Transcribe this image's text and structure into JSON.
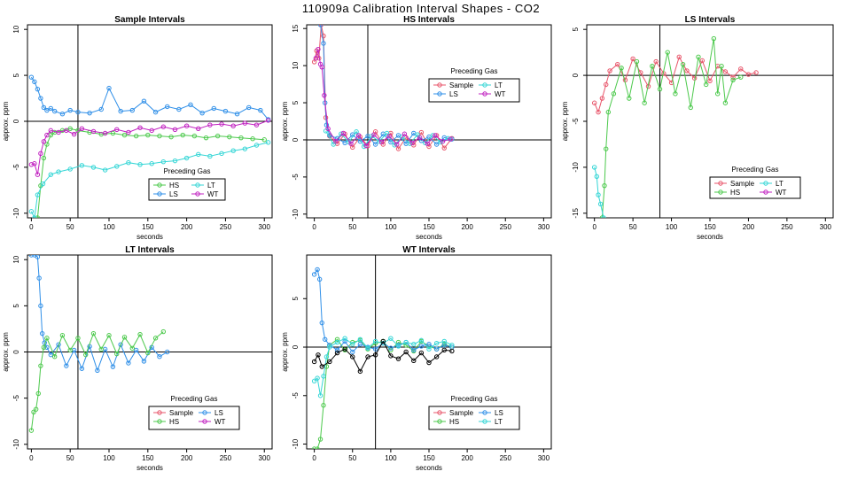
{
  "figure": {
    "title": "110909a   Calibration Interval Shapes - CO2"
  },
  "colors": {
    "Sample": "#e8566b",
    "HS": "#4cc94c",
    "LS": "#2f8fe8",
    "LT": "#35d6d6",
    "WT": "#c020c0",
    "black": "#000000"
  },
  "chart_data": [
    {
      "type": "scatter",
      "title": "Sample Intervals",
      "xlabel": "seconds",
      "ylabel": "approx. ppm",
      "xlim": [
        -5,
        310
      ],
      "ylim": [
        -10.5,
        10.5
      ],
      "xticks": [
        0,
        50,
        100,
        150,
        200,
        250,
        300
      ],
      "yticks": [
        -10,
        -5,
        0,
        5,
        10
      ],
      "vline": 60,
      "hline": 0,
      "legend": {
        "title": "Preceding Gas",
        "position": "bottom-center",
        "entries": [
          "HS",
          "LT",
          "LS",
          "WT"
        ]
      },
      "series": [
        {
          "name": "HS",
          "x": [
            4,
            8,
            12,
            16,
            20,
            25,
            30,
            40,
            50,
            60,
            75,
            90,
            105,
            120,
            135,
            150,
            165,
            180,
            195,
            210,
            225,
            240,
            255,
            270,
            285,
            300
          ],
          "y": [
            -11,
            -10.5,
            -7,
            -4,
            -2.5,
            -1.5,
            -1.2,
            -1,
            -0.8,
            -1,
            -1.2,
            -1.4,
            -1.3,
            -1.5,
            -1.6,
            -1.5,
            -1.6,
            -1.7,
            -1.5,
            -1.6,
            -1.8,
            -1.6,
            -1.7,
            -1.8,
            -1.9,
            -2
          ]
        },
        {
          "name": "LS",
          "x": [
            0,
            4,
            8,
            12,
            16,
            20,
            25,
            30,
            40,
            50,
            60,
            75,
            90,
            100,
            115,
            130,
            145,
            160,
            175,
            190,
            205,
            220,
            235,
            250,
            265,
            280,
            295,
            305
          ],
          "y": [
            4.8,
            4.3,
            3.5,
            2.5,
            1.5,
            1.2,
            1.4,
            1.1,
            0.8,
            1.2,
            1.0,
            0.9,
            1.3,
            3.6,
            1.1,
            1.2,
            2.2,
            1.0,
            1.6,
            1.3,
            1.8,
            0.9,
            1.4,
            1.1,
            0.8,
            1.5,
            1.2,
            0.2
          ]
        },
        {
          "name": "LT",
          "x": [
            0,
            4,
            8,
            15,
            25,
            35,
            50,
            65,
            80,
            95,
            110,
            125,
            140,
            155,
            170,
            185,
            200,
            215,
            230,
            245,
            260,
            275,
            290,
            305
          ],
          "y": [
            -9.8,
            -10.5,
            -8,
            -6.8,
            -5.8,
            -5.5,
            -5.2,
            -4.8,
            -5.0,
            -5.3,
            -4.9,
            -4.5,
            -4.7,
            -4.6,
            -4.4,
            -4.3,
            -4.0,
            -3.6,
            -3.8,
            -3.5,
            -3.2,
            -3.0,
            -2.6,
            -2.3
          ]
        },
        {
          "name": "WT",
          "x": [
            0,
            4,
            8,
            12,
            16,
            20,
            25,
            35,
            45,
            55,
            65,
            80,
            95,
            110,
            125,
            140,
            155,
            170,
            185,
            200,
            215,
            230,
            245,
            260,
            275,
            290,
            305
          ],
          "y": [
            -4.7,
            -4.6,
            -5.8,
            -3.5,
            -2.2,
            -1.5,
            -1.0,
            -1.2,
            -1.0,
            -1.4,
            -0.8,
            -1.1,
            -1.3,
            -0.9,
            -1.2,
            -0.7,
            -1.0,
            -0.6,
            -0.9,
            -0.5,
            -0.8,
            -0.4,
            -0.3,
            -0.5,
            -0.2,
            -0.4,
            0.1
          ]
        }
      ]
    },
    {
      "type": "scatter",
      "title": "HS Intervals",
      "xlabel": "seconds",
      "ylabel": "approx. ppm",
      "xlim": [
        -10,
        310
      ],
      "ylim": [
        -10.5,
        15.5
      ],
      "xticks": [
        0,
        50,
        100,
        150,
        200,
        250,
        300
      ],
      "yticks": [
        -10,
        -5,
        0,
        5,
        10,
        15
      ],
      "vline": 70,
      "hline": 0,
      "legend": {
        "title": "Preceding Gas",
        "position": "top-right",
        "entries": [
          "Sample",
          "LT",
          "LS",
          "WT"
        ]
      },
      "series": [
        {
          "name": "Sample",
          "x": [
            0,
            3,
            6,
            9,
            12,
            15,
            20,
            30,
            40,
            50,
            60,
            70,
            80,
            90,
            100,
            110,
            120,
            130,
            140,
            150,
            160,
            170,
            180
          ],
          "y": [
            10.5,
            12,
            11,
            15.5,
            14,
            3,
            0.5,
            -0.5,
            0.8,
            -1,
            0.4,
            -0.8,
            1.1,
            -0.6,
            0.9,
            -1.2,
            0.3,
            -0.7,
            1.0,
            -0.9,
            0.6,
            -1.1,
            0.2
          ]
        },
        {
          "name": "LS",
          "x": [
            8,
            12,
            14,
            16,
            20,
            30,
            40,
            50,
            60,
            70,
            80,
            90,
            100,
            110,
            120,
            130,
            140,
            150,
            160,
            170,
            180
          ],
          "y": [
            15.5,
            13,
            5,
            2,
            0.6,
            0.2,
            -0.4,
            0.7,
            -0.2,
            0.5,
            -0.6,
            0.8,
            -0.3,
            0.6,
            -0.5,
            0.9,
            -0.1,
            0.4,
            -0.6,
            0.3,
            0.1
          ]
        },
        {
          "name": "LT",
          "x": [
            15,
            25,
            35,
            45,
            55,
            65,
            75,
            85,
            95,
            105,
            115,
            125,
            135,
            145,
            155,
            165,
            175
          ],
          "y": [
            1.2,
            -0.6,
            0.8,
            -0.3,
            1.1,
            -0.9,
            0.5,
            -0.2,
            0.9,
            -0.7,
            0.4,
            -0.5,
            0.7,
            -0.4,
            0.6,
            -0.3,
            0.2
          ]
        },
        {
          "name": "WT",
          "x": [
            2,
            5,
            8,
            10,
            13,
            18,
            28,
            38,
            48,
            58,
            68,
            78,
            88,
            98,
            108,
            118,
            128,
            138,
            148,
            158,
            168,
            178
          ],
          "y": [
            11,
            12.2,
            10.2,
            9.8,
            6,
            1.5,
            -0.2,
            0.9,
            -0.5,
            0.6,
            -0.8,
            0.7,
            -0.3,
            0.5,
            -0.6,
            0.8,
            -0.4,
            0.3,
            -0.5,
            0.6,
            -0.2,
            0.1
          ]
        }
      ]
    },
    {
      "type": "scatter",
      "title": "LS Intervals",
      "xlabel": "seconds",
      "ylabel": "approx. ppm",
      "xlim": [
        -10,
        310
      ],
      "ylim": [
        -15.5,
        5.5
      ],
      "xticks": [
        0,
        50,
        100,
        150,
        200,
        250,
        300
      ],
      "yticks": [
        -15,
        -10,
        -5,
        0,
        5
      ],
      "vline": 85,
      "hline": 0,
      "legend": {
        "title": "Preceding Gas",
        "position": "bottom-right",
        "entries": [
          "Sample",
          "LT",
          "HS",
          "WT"
        ]
      },
      "series": [
        {
          "name": "Sample",
          "x": [
            0,
            5,
            10,
            15,
            20,
            30,
            40,
            50,
            60,
            70,
            80,
            90,
            100,
            110,
            120,
            130,
            140,
            150,
            160,
            170,
            180,
            190,
            200,
            210
          ],
          "y": [
            -3,
            -4,
            -2.5,
            -1,
            0.5,
            1.2,
            -0.5,
            1.8,
            0.3,
            -1.2,
            1.5,
            0.2,
            -0.8,
            2.0,
            0.5,
            -0.3,
            1.6,
            -0.6,
            1.0,
            0.4,
            -0.2,
            0.7,
            0.1,
            0.3
          ]
        },
        {
          "name": "HS",
          "x": [
            10,
            13,
            15,
            18,
            25,
            35,
            45,
            55,
            65,
            75,
            85,
            95,
            105,
            115,
            125,
            135,
            145,
            155,
            160,
            165,
            170,
            180,
            190
          ],
          "y": [
            -15.5,
            -12,
            -8,
            -4,
            -2,
            0.8,
            -2.5,
            1.5,
            -3,
            1.0,
            -1.5,
            2.5,
            -2,
            1.2,
            -3.5,
            2.0,
            -1.0,
            4.0,
            -2.0,
            1.0,
            -3.0,
            -0.5,
            -0.2
          ]
        },
        {
          "name": "LT",
          "x": [
            0,
            3,
            5,
            8,
            12
          ],
          "y": [
            -10,
            -11,
            -13,
            -14,
            -15.5
          ]
        }
      ]
    },
    {
      "type": "scatter",
      "title": "LT Intervals",
      "xlabel": "seconds",
      "ylabel": "approx. ppm",
      "xlim": [
        -5,
        310
      ],
      "ylim": [
        -10.5,
        10.5
      ],
      "xticks": [
        0,
        50,
        100,
        150,
        200,
        250,
        300
      ],
      "yticks": [
        -10,
        -5,
        0,
        5,
        10
      ],
      "vline": 60,
      "hline": 0,
      "legend": {
        "title": "Preceding Gas",
        "position": "bottom-center",
        "entries": [
          "Sample",
          "LS",
          "HS",
          "WT"
        ]
      },
      "series": [
        {
          "name": "LS",
          "x": [
            0,
            4,
            8,
            10,
            12,
            14,
            17,
            20,
            25,
            35,
            45,
            55,
            65,
            75,
            85,
            95,
            105,
            115,
            125,
            135,
            145,
            155,
            165,
            175
          ],
          "y": [
            10.5,
            10.5,
            10.3,
            8,
            5,
            2,
            1,
            0.5,
            -0.3,
            0.8,
            -1.5,
            0.2,
            -1.8,
            0.6,
            -2.0,
            0.3,
            -1.6,
            0.8,
            -1.2,
            0.2,
            -1.0,
            0.5,
            -0.5,
            0.0
          ]
        },
        {
          "name": "HS",
          "x": [
            0,
            3,
            6,
            9,
            12,
            16,
            20,
            30,
            40,
            50,
            60,
            70,
            80,
            90,
            100,
            110,
            120,
            130,
            140,
            150,
            160,
            170
          ],
          "y": [
            -8.5,
            -6.5,
            -6.2,
            -4.5,
            -1.5,
            0.5,
            1.5,
            -0.5,
            1.8,
            0.2,
            1.5,
            -0.3,
            2.0,
            0.3,
            1.8,
            -0.2,
            1.6,
            0.4,
            1.9,
            -0.1,
            1.5,
            2.2
          ]
        }
      ]
    },
    {
      "type": "scatter",
      "title": "WT Intervals",
      "xlabel": "seconds",
      "ylabel": "approx. ppm",
      "xlim": [
        -10,
        310
      ],
      "ylim": [
        -10.5,
        9.5
      ],
      "xticks": [
        0,
        50,
        100,
        150,
        200,
        250,
        300
      ],
      "yticks": [
        -10,
        -5,
        0,
        5
      ],
      "vline": 80,
      "hline": 0,
      "legend": {
        "title": "Preceding Gas",
        "position": "bottom-right",
        "entries": [
          "Sample",
          "LS",
          "HS",
          "LT"
        ]
      },
      "series": [
        {
          "name": "HS",
          "x": [
            0,
            4,
            8,
            12,
            16,
            20,
            30,
            40,
            50,
            60,
            70,
            80,
            90,
            100,
            110,
            120,
            130,
            140,
            150,
            160,
            170,
            180
          ],
          "y": [
            -10.5,
            -10.5,
            -9.5,
            -6,
            -2,
            0.2,
            0.8,
            -0.3,
            0.5,
            0.7,
            -0.2,
            0.4,
            0.6,
            -0.3,
            0.5,
            0.2,
            -0.4,
            0.6,
            0.1,
            -0.2,
            0.3,
            0.0
          ]
        },
        {
          "name": "LS",
          "x": [
            0,
            4,
            7,
            10,
            14,
            20,
            30,
            40,
            50,
            60,
            70,
            80,
            90,
            100,
            110,
            120,
            130,
            140,
            150,
            160,
            170,
            180
          ],
          "y": [
            7.5,
            8,
            7,
            2.5,
            0.8,
            0.2,
            -0.3,
            0.6,
            -0.5,
            0.3,
            0.0,
            -0.2,
            0.4,
            -0.1,
            0.2,
            0.5,
            -0.3,
            0.1,
            0.3,
            -0.2,
            0.2,
            0.0
          ]
        },
        {
          "name": "LT",
          "x": [
            0,
            4,
            8,
            12,
            16,
            20,
            30,
            40,
            50,
            60,
            70,
            80,
            90,
            100,
            110,
            120,
            130,
            140,
            150,
            160,
            170,
            180
          ],
          "y": [
            -3.5,
            -3.2,
            -5.0,
            -3.0,
            -1.0,
            0.0,
            0.5,
            0.9,
            0.3,
            0.8,
            -0.1,
            0.6,
            0.4,
            0.9,
            0.1,
            0.5,
            0.3,
            0.7,
            -0.2,
            0.4,
            0.6,
            0.2
          ]
        },
        {
          "name": "black",
          "x": [
            0,
            5,
            10,
            20,
            30,
            40,
            50,
            60,
            70,
            80,
            90,
            100,
            110,
            120,
            130,
            140,
            150,
            160,
            170,
            180
          ],
          "y": [
            -1.5,
            -0.8,
            -2.0,
            -1.5,
            -0.6,
            -0.2,
            -1.0,
            -2.5,
            -1.0,
            -0.8,
            0.6,
            -0.9,
            -1.2,
            -0.5,
            -1.4,
            -0.6,
            -1.6,
            -1.0,
            -0.3,
            -0.4
          ]
        }
      ]
    }
  ]
}
